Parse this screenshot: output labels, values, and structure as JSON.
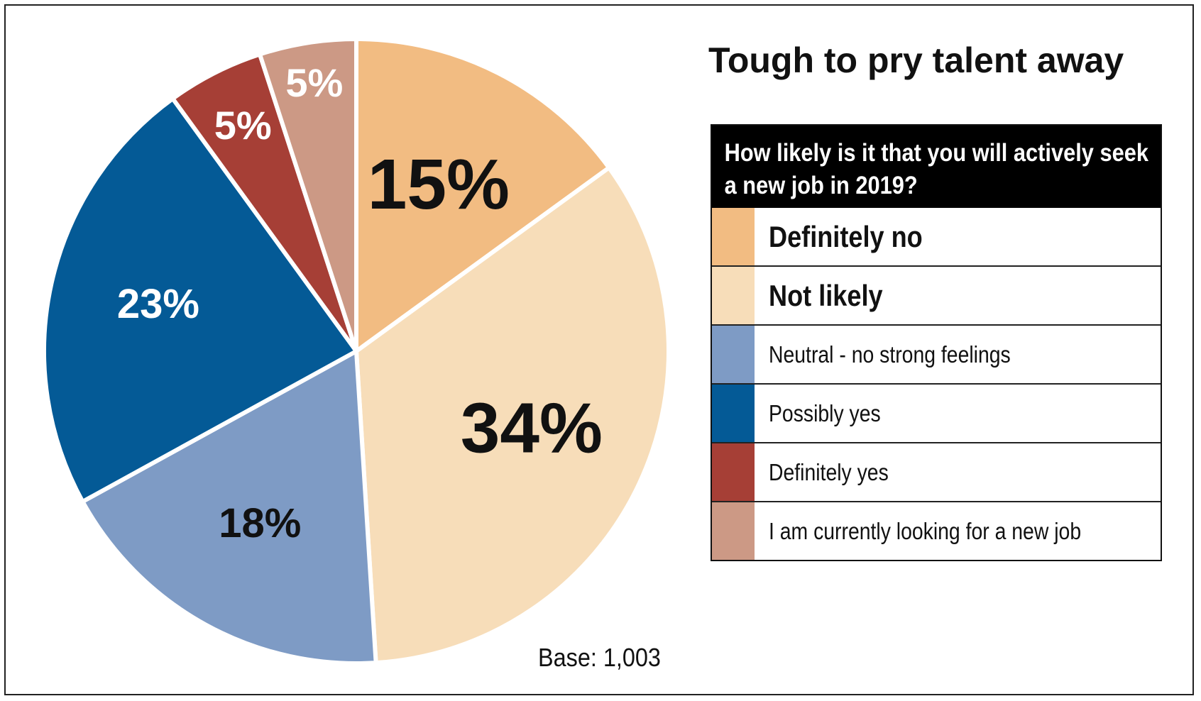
{
  "title": "Tough to pry talent away",
  "question": "How likely is it that you will actively seek a new job in 2019?",
  "base_note": "Base: 1,003",
  "chart_data": {
    "type": "pie",
    "title": "Tough to pry talent away",
    "subtitle": "How likely is it that you will actively seek a new job in 2019?",
    "note": "Base: 1,003",
    "legend_position": "right",
    "slices": [
      {
        "label": "Definitely no",
        "value": 15,
        "display": "15%",
        "color": "#F2BC82",
        "label_color": "#111111",
        "emphasis": true
      },
      {
        "label": "Not likely",
        "value": 34,
        "display": "34%",
        "color": "#F7DDB9",
        "label_color": "#111111",
        "emphasis": true
      },
      {
        "label": "Neutral - no strong feelings",
        "value": 18,
        "display": "18%",
        "color": "#7E9BC5",
        "label_color": "#111111",
        "emphasis": false
      },
      {
        "label": "Possibly yes",
        "value": 23,
        "display": "23%",
        "color": "#045A96",
        "label_color": "#ffffff",
        "emphasis": false
      },
      {
        "label": "Definitely yes",
        "value": 5,
        "display": "5%",
        "color": "#A63F36",
        "label_color": "#ffffff",
        "emphasis": false
      },
      {
        "label": "I am currently looking for a new job",
        "value": 5,
        "display": "5%",
        "color": "#CC9985",
        "label_color": "#ffffff",
        "emphasis": false
      }
    ]
  }
}
